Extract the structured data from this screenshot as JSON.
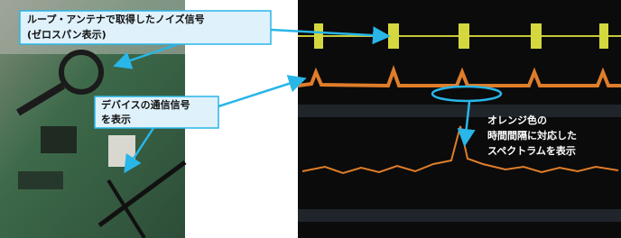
{
  "callouts": [
    {
      "lines": [
        "ループ・アンテナで取得したノイズ信号",
        "(ゼロスパン表示)"
      ]
    },
    {
      "lines": [
        "デバイスの通信信号",
        "を表示"
      ]
    },
    {
      "lines": [
        "オレンジ色の",
        "時間間隔に対応した",
        "スペクトラムを表示"
      ]
    }
  ]
}
